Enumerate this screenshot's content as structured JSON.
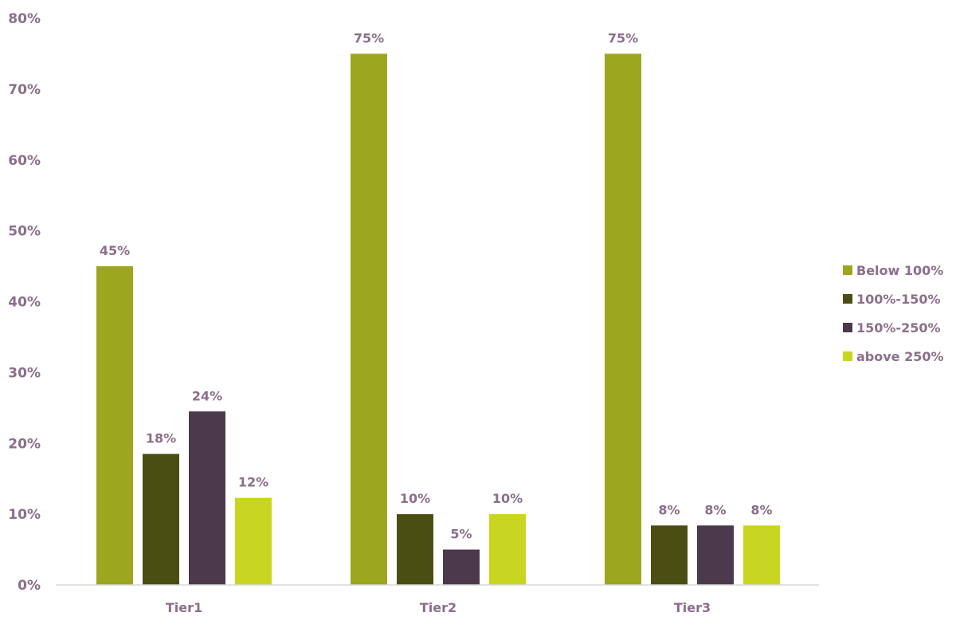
{
  "chart_data": {
    "type": "bar",
    "categories": [
      "Tier1",
      "Tier2",
      "Tier3"
    ],
    "series": [
      {
        "name": "Below 100%",
        "color": "#9ca71f",
        "values": [
          45,
          75,
          75
        ],
        "labels": [
          "45%",
          "75%",
          "75%"
        ]
      },
      {
        "name": "100%-150%",
        "color": "#4a4e12",
        "values": [
          18.5,
          10,
          8.4
        ],
        "labels": [
          "18%",
          "10%",
          "8%"
        ]
      },
      {
        "name": "150%-250%",
        "color": "#4b3a4b",
        "values": [
          24.5,
          5,
          8.4
        ],
        "labels": [
          "24%",
          "5%",
          "8%"
        ]
      },
      {
        "name": "above 250%",
        "color": "#c8d622",
        "values": [
          12.3,
          10,
          8.4
        ],
        "labels": [
          "12%",
          "10%",
          "8%"
        ]
      }
    ],
    "yticks": [
      "0%",
      "10%",
      "20%",
      "30%",
      "40%",
      "50%",
      "60%",
      "70%",
      "80%"
    ],
    "ylim": [
      0,
      80
    ],
    "legend_position": "right",
    "grid": false
  }
}
